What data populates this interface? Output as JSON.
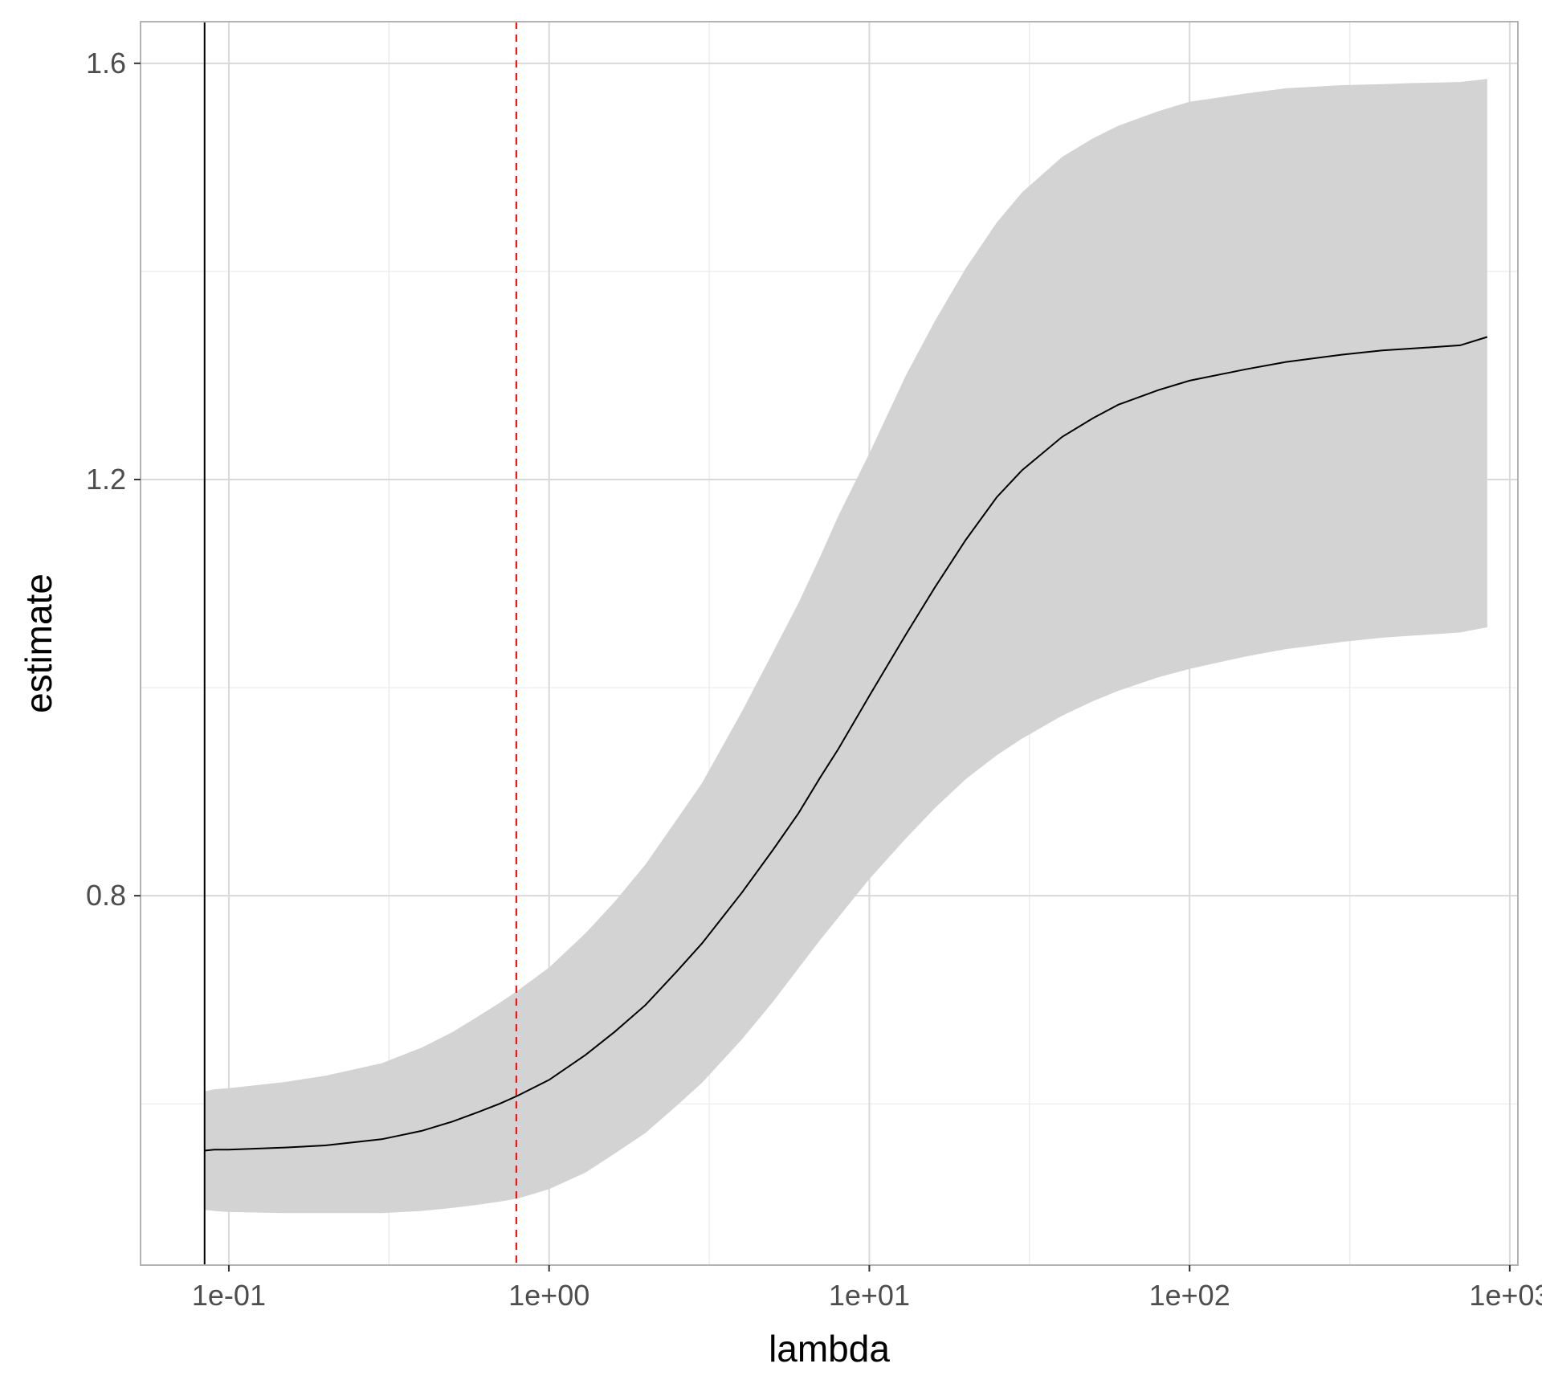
{
  "chart_data": {
    "type": "area",
    "title": "",
    "xlabel": "lambda",
    "ylabel": "estimate",
    "x_scale": "log10",
    "xlim": [
      0.053,
      1060
    ],
    "ylim": [
      0.445,
      1.64
    ],
    "x_ticks": [
      {
        "value": 0.1,
        "label": "1e-01"
      },
      {
        "value": 1,
        "label": "1e+00"
      },
      {
        "value": 10,
        "label": "1e+01"
      },
      {
        "value": 100,
        "label": "1e+02"
      },
      {
        "value": 1000,
        "label": "1e+03"
      }
    ],
    "y_ticks": [
      {
        "value": 0.8,
        "label": "0.8"
      },
      {
        "value": 1.2,
        "label": "1.2"
      },
      {
        "value": 1.6,
        "label": "1.6"
      }
    ],
    "y_minor_gridlines": [
      0.6,
      1.0,
      1.4
    ],
    "grid": true,
    "legend": "none",
    "series": [
      {
        "type": "line",
        "color": "#000000",
        "x": [
          0.084,
          0.09,
          0.1,
          0.15,
          0.2,
          0.3,
          0.4,
          0.5,
          0.6,
          0.7,
          0.8,
          1.0,
          1.3,
          1.6,
          2.0,
          2.5,
          3.0,
          4.0,
          5.0,
          6.0,
          7.0,
          8.0,
          10.0,
          13.0,
          16.0,
          20.0,
          25.0,
          30.0,
          40.0,
          50.0,
          60.0,
          80.0,
          100.0,
          150.0,
          200.0,
          300.0,
          400.0,
          500.0,
          700.0,
          850.0
        ],
        "y": [
          0.555,
          0.556,
          0.556,
          0.558,
          0.56,
          0.566,
          0.574,
          0.583,
          0.592,
          0.6,
          0.608,
          0.623,
          0.647,
          0.669,
          0.695,
          0.727,
          0.754,
          0.803,
          0.844,
          0.879,
          0.913,
          0.941,
          0.992,
          1.051,
          1.096,
          1.142,
          1.183,
          1.209,
          1.241,
          1.259,
          1.272,
          1.286,
          1.295,
          1.306,
          1.313,
          1.32,
          1.324,
          1.326,
          1.329,
          1.337
        ]
      },
      {
        "type": "ribbon",
        "color": "#d3d3d3",
        "x": [
          0.084,
          0.09,
          0.1,
          0.15,
          0.2,
          0.3,
          0.4,
          0.5,
          0.6,
          0.7,
          0.8,
          1.0,
          1.3,
          1.6,
          2.0,
          2.5,
          3.0,
          4.0,
          5.0,
          6.0,
          7.0,
          8.0,
          10.0,
          13.0,
          16.0,
          20.0,
          25.0,
          30.0,
          40.0,
          50.0,
          60.0,
          80.0,
          100.0,
          150.0,
          200.0,
          300.0,
          400.0,
          500.0,
          700.0,
          850.0
        ],
        "lower": [
          0.498,
          0.497,
          0.496,
          0.495,
          0.495,
          0.495,
          0.497,
          0.5,
          0.503,
          0.506,
          0.509,
          0.518,
          0.534,
          0.552,
          0.572,
          0.598,
          0.62,
          0.662,
          0.698,
          0.73,
          0.757,
          0.779,
          0.816,
          0.855,
          0.884,
          0.912,
          0.935,
          0.951,
          0.973,
          0.987,
          0.997,
          1.01,
          1.018,
          1.03,
          1.037,
          1.044,
          1.048,
          1.05,
          1.053,
          1.058
        ],
        "upper": [
          0.612,
          0.614,
          0.615,
          0.621,
          0.627,
          0.639,
          0.654,
          0.669,
          0.684,
          0.697,
          0.709,
          0.731,
          0.764,
          0.794,
          0.83,
          0.873,
          0.908,
          0.977,
          1.034,
          1.081,
          1.125,
          1.165,
          1.225,
          1.3,
          1.352,
          1.403,
          1.447,
          1.476,
          1.51,
          1.528,
          1.54,
          1.554,
          1.563,
          1.571,
          1.576,
          1.579,
          1.58,
          1.581,
          1.582,
          1.585
        ]
      }
    ],
    "reference_lines": [
      {
        "orientation": "vertical",
        "x": 0.084,
        "color": "#000000",
        "style": "solid"
      },
      {
        "orientation": "vertical",
        "x": 0.79,
        "color": "#ff0000",
        "style": "dashed"
      }
    ]
  }
}
